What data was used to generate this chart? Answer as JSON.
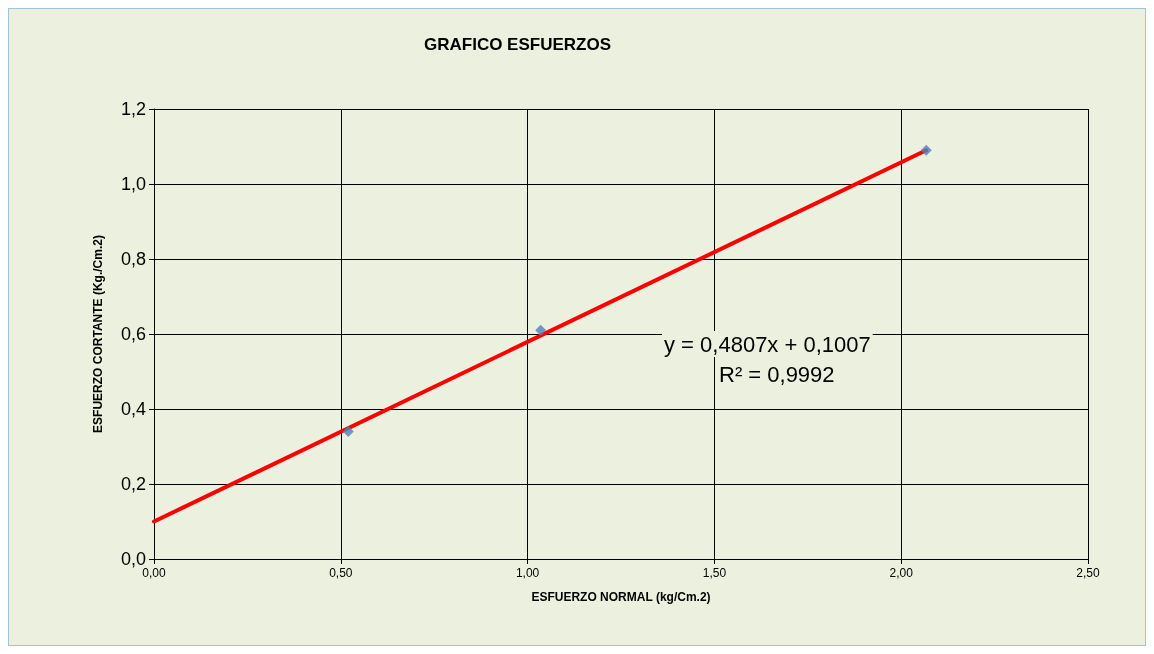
{
  "chart_data": {
    "type": "scatter",
    "title": "GRAFICO ESFUERZOS",
    "xlabel": "ESFUERZO NORMAL (kg/Cm.2)",
    "ylabel": "ESFUERZO CORTANTE (Kg./Cm.2)",
    "annotations": [
      "y = 0,4807x + 0,1007",
      "R² = 0,9992"
    ],
    "series": [
      {
        "type": "scatter",
        "color": "#4f81bd",
        "marker": "diamond",
        "x": [
          0.52,
          1.035,
          2.067
        ],
        "values": [
          0.34,
          0.61,
          1.09
        ]
      },
      {
        "type": "line",
        "color": "#ff0000",
        "marker": "none",
        "line_style": "solid",
        "x": [
          0,
          2.067
        ],
        "values": [
          0.1,
          1.09
        ]
      }
    ],
    "xlim": [
      0,
      2.5
    ],
    "xticks": [
      {
        "value": 0,
        "label": "0,00"
      },
      {
        "value": 0.5,
        "label": "0,50"
      },
      {
        "value": 1,
        "label": "1,00"
      },
      {
        "value": 1.5,
        "label": "1,50"
      },
      {
        "value": 2,
        "label": "2,00"
      },
      {
        "value": 2.5,
        "label": "2,50"
      }
    ],
    "ylim": [
      0,
      1.2
    ],
    "yticks": [
      {
        "value": 0,
        "label": "0,0"
      },
      {
        "value": 0.2,
        "label": "0,2"
      },
      {
        "value": 0.4,
        "label": "0,4"
      },
      {
        "value": 0.6,
        "label": "0,6"
      },
      {
        "value": 0.8,
        "label": "0,8"
      },
      {
        "value": 1,
        "label": "1,0"
      },
      {
        "value": 1.2,
        "label": "1,2"
      }
    ],
    "grid": true
  }
}
